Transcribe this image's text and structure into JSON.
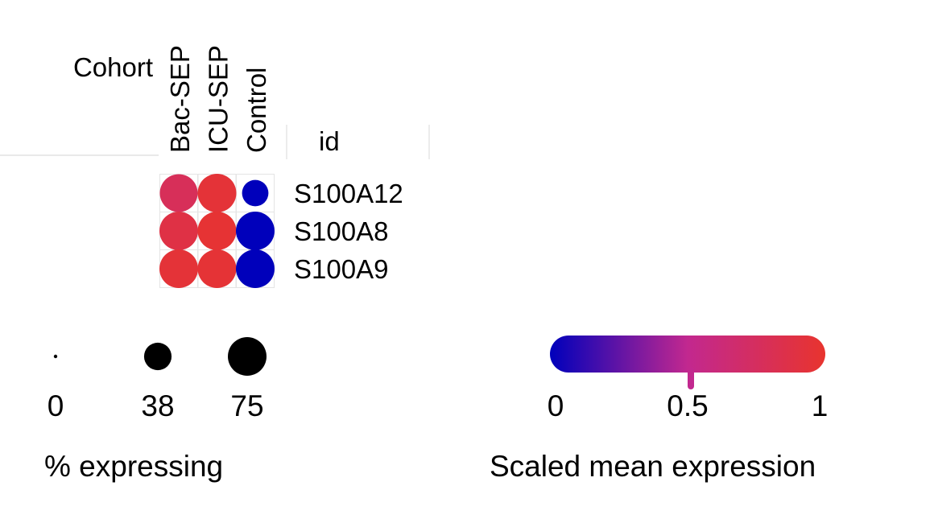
{
  "chart_data": {
    "type": "dotplot",
    "header_label": "Cohort",
    "row_header_label": "id",
    "columns": [
      "Bac-SEP",
      "ICU-SEP",
      "Control"
    ],
    "genes": [
      "S100A12",
      "S100A8",
      "S100A9"
    ],
    "pct_expressing": [
      [
        72,
        75,
        35
      ],
      [
        75,
        75,
        75
      ],
      [
        75,
        75,
        75
      ]
    ],
    "scaled_mean_expression": [
      [
        0.78,
        0.95,
        0.0
      ],
      [
        0.88,
        0.97,
        0.0
      ],
      [
        0.95,
        0.96,
        0.0
      ]
    ],
    "size_legend": {
      "title": "% expressing",
      "values": [
        0,
        38,
        75
      ],
      "labels": [
        "0",
        "38",
        "75"
      ]
    },
    "color_legend": {
      "title": "Scaled mean expression",
      "range": [
        0,
        1
      ],
      "ticks": [
        0,
        0.5,
        1
      ],
      "tick_labels": [
        "0",
        "0.5",
        "1"
      ],
      "marker_value": 0.5,
      "colors": {
        "low": "#0000bb",
        "mid": "#c2288f",
        "high": "#e8342e"
      }
    }
  }
}
